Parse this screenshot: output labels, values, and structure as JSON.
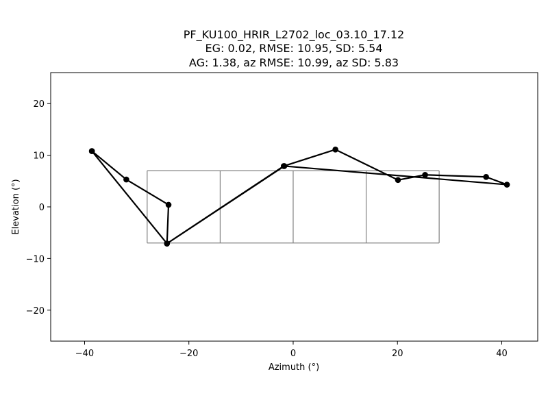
{
  "chart_data": {
    "type": "line",
    "title_lines": [
      "PF_KU100_HRIR_L2702_loc_03.10_17.12",
      "EG: 0.02, RMSE: 10.95, SD: 5.54",
      "AG: 1.38, az RMSE: 10.99, az SD: 5.83"
    ],
    "xlabel": "Azimuth (°)",
    "ylabel": "Elevation (°)",
    "xlim": [
      -46.5,
      46.9
    ],
    "ylim": [
      -26,
      26
    ],
    "xticks": [
      -40,
      -20,
      0,
      20,
      40
    ],
    "xtick_labels": [
      "−40",
      "−20",
      "0",
      "20",
      "40"
    ],
    "yticks": [
      -20,
      -10,
      0,
      10,
      20
    ],
    "ytick_labels": [
      "−20",
      "−10",
      "0",
      "10",
      "20"
    ],
    "grid": false,
    "colors": {
      "line": "#000000",
      "reference_grid": "#808080"
    },
    "reference_grid": {
      "x_edges": [
        -28,
        -14,
        0,
        14,
        28
      ],
      "y_range": [
        -7,
        7
      ]
    },
    "series": [
      {
        "points": [
          [
            -38.6,
            10.8
          ],
          [
            -32.0,
            5.3
          ],
          [
            -23.9,
            0.4
          ],
          [
            -24.2,
            -7.1
          ],
          [
            -1.8,
            7.9
          ],
          [
            8.1,
            11.1
          ],
          [
            20.1,
            5.2
          ],
          [
            25.3,
            6.2
          ],
          [
            37.0,
            5.8
          ],
          [
            41.0,
            4.3
          ],
          [
            -1.7,
            7.9
          ],
          [
            -24.2,
            -7.1
          ],
          [
            -38.6,
            10.8
          ]
        ]
      }
    ]
  }
}
